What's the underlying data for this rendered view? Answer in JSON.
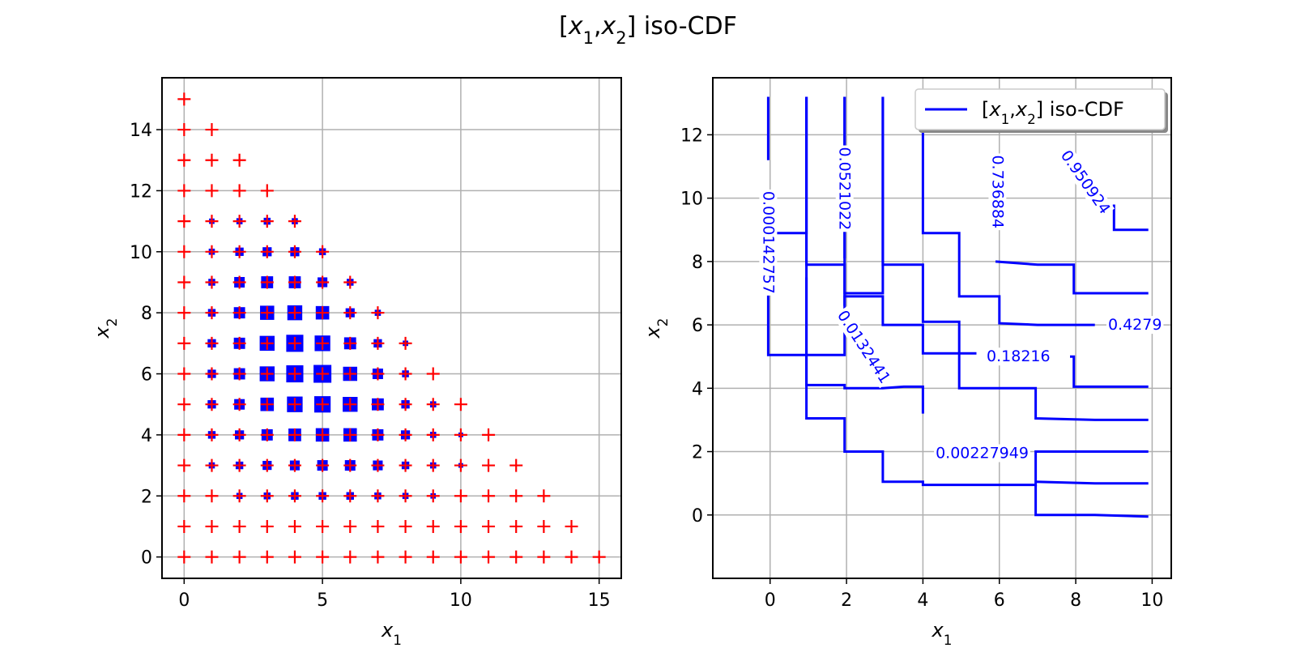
{
  "figure": {
    "title": "[x1,x2] iso-CDF"
  },
  "chart_data": [
    {
      "type": "scatter",
      "xlabel": "x1",
      "ylabel": "x2",
      "xlim": [
        -0.8,
        15.8
      ],
      "ylim": [
        -0.7,
        15.7
      ],
      "xticks": [
        0,
        5,
        10,
        15
      ],
      "yticks": [
        0,
        2,
        4,
        6,
        8,
        10,
        12,
        14
      ],
      "grid": true,
      "support": "all integer points with x1 >= 0, x2 >= 0, x1 + x2 <= 15 (red plus markers)",
      "marker_color": "#ff0000",
      "mass_color": "#0000ff",
      "mass_points": [
        {
          "x": 1,
          "y": 4,
          "w": 0.3
        },
        {
          "x": 1,
          "y": 5,
          "w": 0.35
        },
        {
          "x": 1,
          "y": 6,
          "w": 0.35
        },
        {
          "x": 1,
          "y": 7,
          "w": 0.35
        },
        {
          "x": 1,
          "y": 8,
          "w": 0.3
        },
        {
          "x": 1,
          "y": 9,
          "w": 0.25
        },
        {
          "x": 1,
          "y": 10,
          "w": 0.2
        },
        {
          "x": 1,
          "y": 11,
          "w": 0.15
        },
        {
          "x": 1,
          "y": 3,
          "w": 0.2
        },
        {
          "x": 2,
          "y": 2,
          "w": 0.2
        },
        {
          "x": 2,
          "y": 3,
          "w": 0.3
        },
        {
          "x": 2,
          "y": 4,
          "w": 0.4
        },
        {
          "x": 2,
          "y": 5,
          "w": 0.5
        },
        {
          "x": 2,
          "y": 6,
          "w": 0.55
        },
        {
          "x": 2,
          "y": 7,
          "w": 0.55
        },
        {
          "x": 2,
          "y": 8,
          "w": 0.55
        },
        {
          "x": 2,
          "y": 9,
          "w": 0.5
        },
        {
          "x": 2,
          "y": 10,
          "w": 0.35
        },
        {
          "x": 2,
          "y": 11,
          "w": 0.2
        },
        {
          "x": 3,
          "y": 2,
          "w": 0.25
        },
        {
          "x": 3,
          "y": 3,
          "w": 0.4
        },
        {
          "x": 3,
          "y": 4,
          "w": 0.55
        },
        {
          "x": 3,
          "y": 5,
          "w": 0.7
        },
        {
          "x": 3,
          "y": 6,
          "w": 0.8
        },
        {
          "x": 3,
          "y": 7,
          "w": 0.8
        },
        {
          "x": 3,
          "y": 8,
          "w": 0.75
        },
        {
          "x": 3,
          "y": 9,
          "w": 0.6
        },
        {
          "x": 3,
          "y": 10,
          "w": 0.4
        },
        {
          "x": 3,
          "y": 11,
          "w": 0.25
        },
        {
          "x": 4,
          "y": 2,
          "w": 0.3
        },
        {
          "x": 4,
          "y": 3,
          "w": 0.45
        },
        {
          "x": 4,
          "y": 4,
          "w": 0.65
        },
        {
          "x": 4,
          "y": 5,
          "w": 0.85
        },
        {
          "x": 4,
          "y": 6,
          "w": 0.95
        },
        {
          "x": 4,
          "y": 7,
          "w": 0.95
        },
        {
          "x": 4,
          "y": 8,
          "w": 0.8
        },
        {
          "x": 4,
          "y": 9,
          "w": 0.6
        },
        {
          "x": 4,
          "y": 10,
          "w": 0.4
        },
        {
          "x": 4,
          "y": 11,
          "w": 0.2
        },
        {
          "x": 5,
          "y": 2,
          "w": 0.3
        },
        {
          "x": 5,
          "y": 3,
          "w": 0.5
        },
        {
          "x": 5,
          "y": 4,
          "w": 0.7
        },
        {
          "x": 5,
          "y": 5,
          "w": 0.9
        },
        {
          "x": 5,
          "y": 6,
          "w": 1.0
        },
        {
          "x": 5,
          "y": 7,
          "w": 0.85
        },
        {
          "x": 5,
          "y": 8,
          "w": 0.7
        },
        {
          "x": 5,
          "y": 9,
          "w": 0.45
        },
        {
          "x": 5,
          "y": 10,
          "w": 0.25
        },
        {
          "x": 6,
          "y": 2,
          "w": 0.3
        },
        {
          "x": 6,
          "y": 3,
          "w": 0.5
        },
        {
          "x": 6,
          "y": 4,
          "w": 0.7
        },
        {
          "x": 6,
          "y": 5,
          "w": 0.8
        },
        {
          "x": 6,
          "y": 6,
          "w": 0.75
        },
        {
          "x": 6,
          "y": 7,
          "w": 0.6
        },
        {
          "x": 6,
          "y": 8,
          "w": 0.4
        },
        {
          "x": 6,
          "y": 9,
          "w": 0.25
        },
        {
          "x": 7,
          "y": 2,
          "w": 0.25
        },
        {
          "x": 7,
          "y": 3,
          "w": 0.45
        },
        {
          "x": 7,
          "y": 4,
          "w": 0.55
        },
        {
          "x": 7,
          "y": 5,
          "w": 0.6
        },
        {
          "x": 7,
          "y": 6,
          "w": 0.5
        },
        {
          "x": 7,
          "y": 7,
          "w": 0.35
        },
        {
          "x": 7,
          "y": 8,
          "w": 0.2
        },
        {
          "x": 8,
          "y": 2,
          "w": 0.2
        },
        {
          "x": 8,
          "y": 3,
          "w": 0.3
        },
        {
          "x": 8,
          "y": 4,
          "w": 0.4
        },
        {
          "x": 8,
          "y": 5,
          "w": 0.35
        },
        {
          "x": 8,
          "y": 6,
          "w": 0.25
        },
        {
          "x": 8,
          "y": 7,
          "w": 0.15
        },
        {
          "x": 9,
          "y": 2,
          "w": 0.15
        },
        {
          "x": 9,
          "y": 3,
          "w": 0.2
        },
        {
          "x": 9,
          "y": 4,
          "w": 0.2
        },
        {
          "x": 9,
          "y": 5,
          "w": 0.2
        },
        {
          "x": 10,
          "y": 3,
          "w": 0.1
        },
        {
          "x": 10,
          "y": 4,
          "w": 0.1
        }
      ]
    },
    {
      "type": "line",
      "subtype": "contour",
      "xlabel": "x1",
      "ylabel": "x2",
      "xlim": [
        -1.5,
        10.5
      ],
      "ylim": [
        -2.0,
        13.8
      ],
      "xticks": [
        0,
        2,
        4,
        6,
        8,
        10
      ],
      "yticks": [
        0,
        2,
        4,
        6,
        8,
        10,
        12
      ],
      "grid": true,
      "legend": {
        "label": "[x1,x2] iso-CDF",
        "position": "top-right"
      },
      "line_color": "#0000ff",
      "contours": [
        {
          "points": [
            [
              -0.05,
              13.2
            ],
            [
              -0.05,
              11.2
            ]
          ]
        },
        {
          "points": [
            [
              -0.05,
              9.8
            ],
            [
              -0.05,
              8.9
            ],
            [
              0.4,
              8.9
            ],
            [
              0.95,
              8.9
            ],
            [
              0.95,
              13.2
            ]
          ]
        },
        {
          "points": [
            [
              -0.05,
              7.0
            ],
            [
              -0.05,
              5.05
            ],
            [
              0.95,
              5.05
            ],
            [
              1.4,
              5.05
            ],
            [
              1.95,
              5.05
            ],
            [
              1.95,
              13.2
            ]
          ]
        },
        {
          "points": [
            [
              0.95,
              13.2
            ],
            [
              0.95,
              7.9
            ],
            [
              1.5,
              7.9
            ],
            [
              1.95,
              7.9
            ],
            [
              1.95,
              7.0
            ],
            [
              2.4,
              7.0
            ],
            [
              2.95,
              7.0
            ],
            [
              2.95,
              13.2
            ]
          ]
        },
        {
          "points": [
            [
              0.95,
              7.5
            ],
            [
              0.95,
              4.1
            ],
            [
              1.95,
              4.1
            ],
            [
              1.95,
              4.0
            ],
            [
              2.4,
              4.0
            ],
            [
              2.95,
              4.0
            ],
            [
              3.5,
              4.05
            ],
            [
              4.0,
              4.05
            ],
            [
              4.0,
              3.2
            ]
          ]
        },
        {
          "points": [
            [
              1.95,
              13.2
            ],
            [
              1.95,
              8.1
            ]
          ]
        },
        {
          "points": [
            [
              1.95,
              6.6
            ],
            [
              1.95,
              6.9
            ],
            [
              2.95,
              6.9
            ],
            [
              2.95,
              6.0
            ],
            [
              3.5,
              6.0
            ],
            [
              4.0,
              6.0
            ],
            [
              4.0,
              5.1
            ],
            [
              4.5,
              5.1
            ],
            [
              4.95,
              5.1
            ],
            [
              5.4,
              5.1
            ]
          ]
        },
        {
          "points": [
            [
              2.95,
              13.2
            ],
            [
              2.95,
              7.9
            ],
            [
              3.5,
              7.9
            ],
            [
              4.0,
              7.9
            ],
            [
              4.0,
              6.1
            ],
            [
              4.6,
              6.1
            ],
            [
              4.95,
              6.1
            ],
            [
              4.95,
              4.0
            ],
            [
              6.95,
              4.0
            ],
            [
              6.95,
              3.05
            ],
            [
              8.5,
              3.0
            ],
            [
              9.9,
              3.0
            ]
          ]
        },
        {
          "points": [
            [
              4.0,
              12.2
            ],
            [
              4.0,
              8.9
            ],
            [
              4.5,
              8.9
            ],
            [
              4.95,
              8.9
            ],
            [
              4.95,
              6.9
            ],
            [
              5.5,
              6.9
            ],
            [
              6.0,
              6.9
            ],
            [
              6.0,
              6.05
            ],
            [
              7.0,
              6.0
            ],
            [
              8.5,
              6.0
            ]
          ]
        },
        {
          "points": [
            [
              5.9,
              8.0
            ],
            [
              7.0,
              7.9
            ],
            [
              7.95,
              7.9
            ],
            [
              7.95,
              7.0
            ],
            [
              9.0,
              7.0
            ],
            [
              9.9,
              7.0
            ]
          ]
        },
        {
          "points": [
            [
              7.85,
              5.0
            ],
            [
              7.95,
              5.0
            ],
            [
              7.95,
              4.05
            ],
            [
              9.9,
              4.05
            ]
          ]
        },
        {
          "points": [
            [
              9.0,
              9.8
            ],
            [
              9.0,
              9.0
            ],
            [
              9.9,
              9.0
            ]
          ]
        },
        {
          "points": [
            [
              0.95,
              13.2
            ],
            [
              0.95,
              3.05
            ],
            [
              1.95,
              3.05
            ],
            [
              1.95,
              2.0
            ],
            [
              2.95,
              2.0
            ],
            [
              2.95,
              1.05
            ],
            [
              4.0,
              1.05
            ],
            [
              4.0,
              0.95
            ],
            [
              6.95,
              0.95
            ],
            [
              6.95,
              2.0
            ],
            [
              8.5,
              2.0
            ],
            [
              9.9,
              2.0
            ]
          ]
        },
        {
          "points": [
            [
              6.95,
              1.05
            ],
            [
              8.5,
              1.0
            ],
            [
              9.9,
              1.0
            ]
          ]
        },
        {
          "points": [
            [
              6.95,
              0.95
            ],
            [
              6.95,
              0.0
            ],
            [
              8.5,
              0.0
            ],
            [
              9.9,
              -0.05
            ]
          ]
        },
        {
          "points": [
            [
              5.95,
              13.2
            ],
            [
              5.95,
              13.0
            ]
          ]
        },
        {
          "points": [
            [
              7.95,
              13.2
            ],
            [
              7.95,
              12.7
            ]
          ]
        }
      ],
      "levels": [
        {
          "label": "0.000142757",
          "x": -0.05,
          "y": 8.6,
          "rotate": 90
        },
        {
          "label": "0.0521022",
          "x": 1.95,
          "y": 10.3,
          "rotate": 90
        },
        {
          "label": "0.736884",
          "x": 5.95,
          "y": 10.2,
          "rotate": 90
        },
        {
          "label": "0.950924",
          "x": 8.25,
          "y": 10.5,
          "rotate": 55
        },
        {
          "label": "0.0132441",
          "x": 2.45,
          "y": 5.3,
          "rotate": 57
        },
        {
          "label": "0.18216",
          "x": 6.5,
          "y": 5.0,
          "rotate": 0
        },
        {
          "label": "0.4279",
          "x": 9.55,
          "y": 6.0,
          "rotate": 0
        },
        {
          "label": "0.00227949",
          "x": 5.55,
          "y": 1.95,
          "rotate": 0
        }
      ]
    }
  ]
}
